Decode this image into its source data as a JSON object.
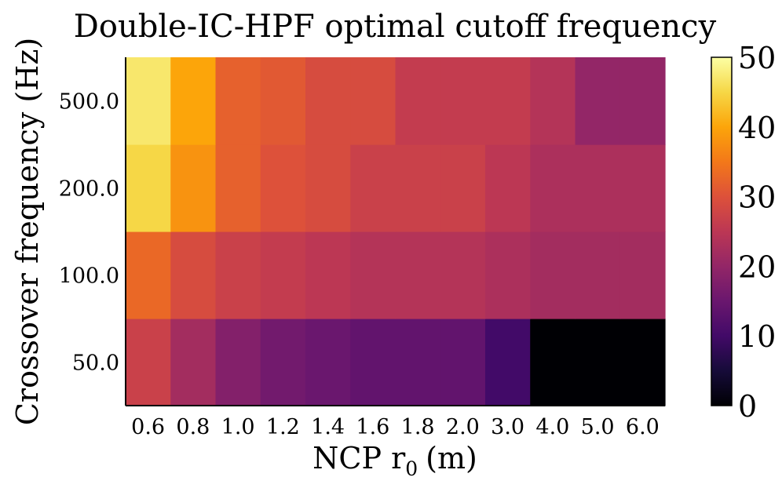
{
  "chart_data": {
    "type": "heatmap",
    "title": "Double-IC-HPF optimal cutoff frequency",
    "xlabel_main": "NCP r",
    "xlabel_sub": "0",
    "xlabel_unit": "(m)",
    "ylabel": "Crossover frequency (Hz)",
    "x_categories": [
      "0.6",
      "0.8",
      "1.0",
      "1.2",
      "1.4",
      "1.6",
      "1.8",
      "2.0",
      "3.0",
      "4.0",
      "5.0",
      "6.0"
    ],
    "y_categories": [
      "50.0",
      "100.0",
      "200.0",
      "500.0"
    ],
    "values": [
      [
        27,
        22,
        18,
        16,
        15,
        14,
        14,
        14,
        10,
        0,
        0,
        0
      ],
      [
        33,
        29,
        27,
        26,
        25,
        24,
        24,
        24,
        23,
        22,
        22,
        22
      ],
      [
        45,
        38,
        32,
        30,
        29,
        27,
        27,
        27,
        25,
        23,
        23,
        23
      ],
      [
        47,
        40,
        32,
        31,
        29,
        29,
        26,
        26,
        26,
        24,
        20,
        20
      ]
    ],
    "colorbar": {
      "colormap": "inferno",
      "range": [
        0,
        50
      ],
      "ticks": [
        "0",
        "10",
        "20",
        "30",
        "40",
        "50"
      ]
    },
    "grid": false,
    "legend": "colorbar-right"
  }
}
